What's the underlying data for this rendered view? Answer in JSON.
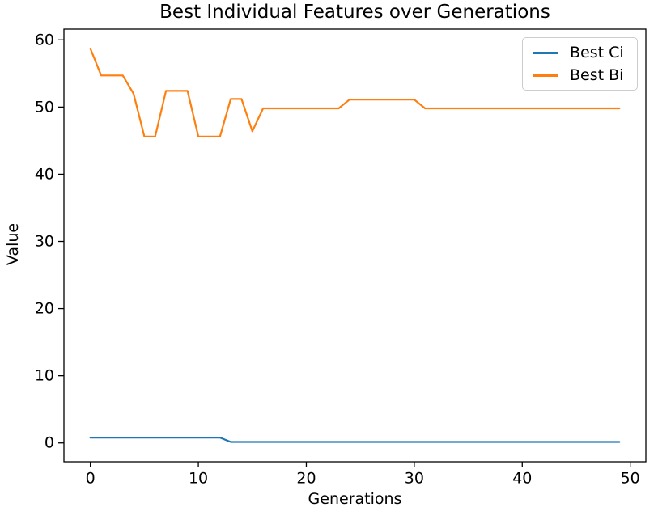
{
  "figure": {
    "background": "#ffffff",
    "axis_color": "#000000",
    "text_color": "#000000",
    "legend_border_color": "#cccccc"
  },
  "chart_data": {
    "type": "line",
    "title": "Best Individual Features over Generations",
    "xlabel": "Generations",
    "ylabel": "Value",
    "grid": false,
    "legend_position": "upper right",
    "xlim": [
      -2.45,
      51.45
    ],
    "ylim": [
      -2.8,
      61.6
    ],
    "xticks": [
      0,
      10,
      20,
      30,
      40,
      50
    ],
    "yticks": [
      0,
      10,
      20,
      30,
      40,
      50,
      60
    ],
    "x": [
      0,
      1,
      2,
      3,
      4,
      5,
      6,
      7,
      8,
      9,
      10,
      11,
      12,
      13,
      14,
      15,
      16,
      17,
      18,
      19,
      20,
      21,
      22,
      23,
      24,
      25,
      26,
      27,
      28,
      29,
      30,
      31,
      32,
      33,
      34,
      35,
      36,
      37,
      38,
      39,
      40,
      41,
      42,
      43,
      44,
      45,
      46,
      47,
      48,
      49
    ],
    "series": [
      {
        "name": "Best Ci",
        "color": "#1f77b4",
        "values": [
          0.8,
          0.8,
          0.8,
          0.8,
          0.8,
          0.8,
          0.8,
          0.8,
          0.8,
          0.8,
          0.8,
          0.8,
          0.8,
          0.15,
          0.15,
          0.15,
          0.15,
          0.15,
          0.15,
          0.15,
          0.15,
          0.15,
          0.15,
          0.15,
          0.15,
          0.15,
          0.15,
          0.15,
          0.15,
          0.15,
          0.15,
          0.15,
          0.15,
          0.15,
          0.15,
          0.15,
          0.15,
          0.15,
          0.15,
          0.15,
          0.15,
          0.15,
          0.15,
          0.15,
          0.15,
          0.15,
          0.15,
          0.15,
          0.15,
          0.15
        ]
      },
      {
        "name": "Best Bi",
        "color": "#ff7f0e",
        "values": [
          58.7,
          54.7,
          54.7,
          54.7,
          52.0,
          45.6,
          45.6,
          52.4,
          52.4,
          52.4,
          45.6,
          45.6,
          45.6,
          51.2,
          51.2,
          46.4,
          49.8,
          49.8,
          49.8,
          49.8,
          49.8,
          49.8,
          49.8,
          49.8,
          51.1,
          51.1,
          51.1,
          51.1,
          51.1,
          51.1,
          51.1,
          49.8,
          49.8,
          49.8,
          49.8,
          49.8,
          49.8,
          49.8,
          49.8,
          49.8,
          49.8,
          49.8,
          49.8,
          49.8,
          49.8,
          49.8,
          49.8,
          49.8,
          49.8,
          49.8
        ]
      }
    ]
  }
}
